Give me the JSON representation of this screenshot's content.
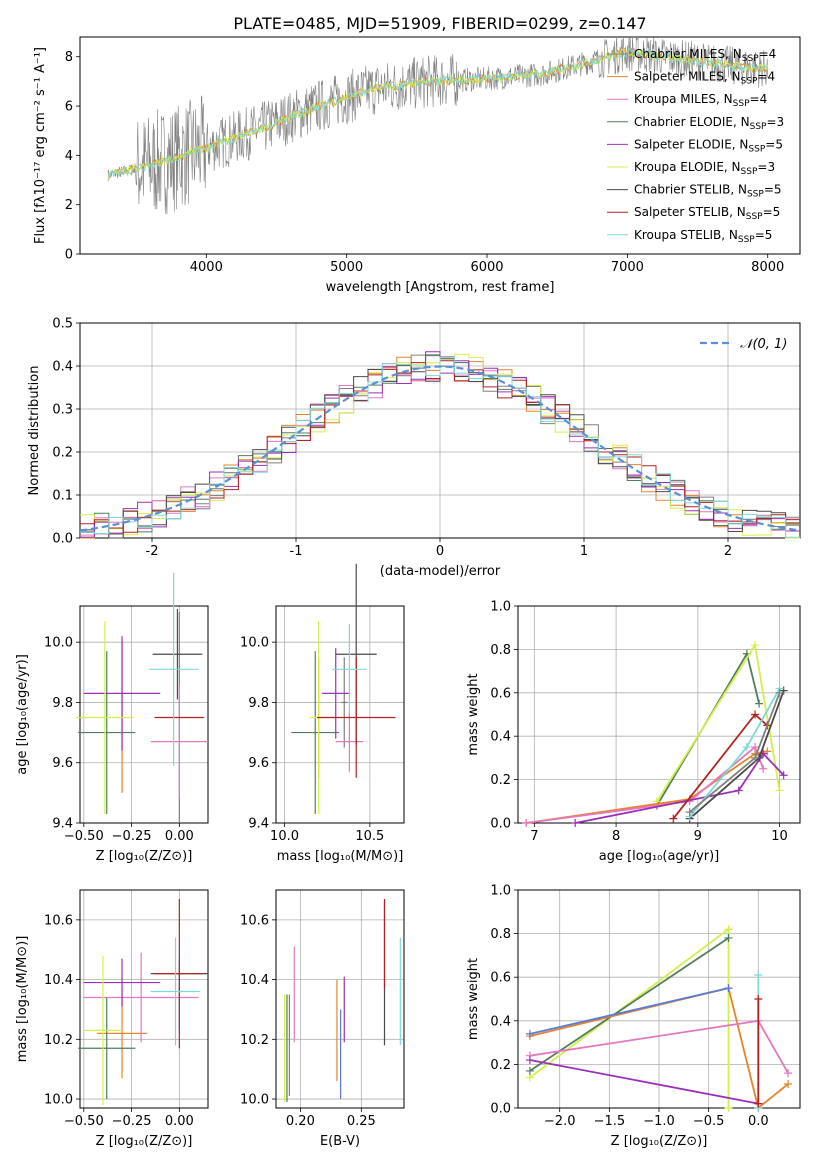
{
  "figure_title": "PLATE=0485, MJD=51909, FIBERID=0299, z=0.147",
  "colors": {
    "Chabrier MILES": "#808080",
    "Salpeter MILES": "#e6842a",
    "Kroupa MILES": "#e377c2",
    "Chabrier ELODIE": "#4f7f5f",
    "Salpeter ELODIE": "#9b30b8",
    "Kroupa ELODIE": "#d4ef4a",
    "Chabrier STELIB": "#4a4a4a",
    "Salpeter STELIB": "#b22222",
    "Kroupa STELIB": "#7fd8d8",
    "gaussian": "#5b8fd6",
    "blue_fit": "#5b7bd6"
  },
  "chart_data": [
    {
      "id": "spectrum",
      "type": "line",
      "title": "PLATE=0485, MJD=51909, FIBERID=0299, z=0.147",
      "xlabel": "wavelength [Angstrom, rest frame]",
      "ylabel": "Flux [fλ10⁻¹⁷ erg cm⁻² s⁻¹ A⁻¹]",
      "xlim": [
        3100,
        8230
      ],
      "ylim": [
        0,
        8.8
      ],
      "xticks": [
        4000,
        5000,
        6000,
        7000,
        8000
      ],
      "yticks": [
        0,
        2,
        4,
        6,
        8
      ],
      "grid": false,
      "legend": "top-right",
      "legend_entries": [
        {
          "label": "Chabrier MILES, N",
          "sub": "SSP",
          "tail": "=4",
          "color": "#808080"
        },
        {
          "label": "Salpeter MILES, N",
          "sub": "SSP",
          "tail": "=4",
          "color": "#e6842a"
        },
        {
          "label": "Kroupa MILES, N",
          "sub": "SSP",
          "tail": "=4",
          "color": "#e377c2"
        },
        {
          "label": "Chabrier ELODIE, N",
          "sub": "SSP",
          "tail": "=3",
          "color": "#4f7f5f"
        },
        {
          "label": "Salpeter ELODIE, N",
          "sub": "SSP",
          "tail": "=5",
          "color": "#9b30b8"
        },
        {
          "label": "Kroupa ELODIE, N",
          "sub": "SSP",
          "tail": "=3",
          "color": "#d4ef4a"
        },
        {
          "label": "Chabrier STELIB, N",
          "sub": "SSP",
          "tail": "=5",
          "color": "#4a4a4a"
        },
        {
          "label": "Salpeter STELIB, N",
          "sub": "SSP",
          "tail": "=5",
          "color": "#b22222"
        },
        {
          "label": "Kroupa STELIB, N",
          "sub": "SSP",
          "tail": "=5",
          "color": "#7fd8d8"
        }
      ],
      "continuum_points": [
        [
          3300,
          3.2
        ],
        [
          3600,
          3.6
        ],
        [
          4000,
          4.3
        ],
        [
          4400,
          5.1
        ],
        [
          4800,
          6.0
        ],
        [
          5200,
          6.7
        ],
        [
          5600,
          7.0
        ],
        [
          6000,
          7.1
        ],
        [
          6400,
          7.3
        ],
        [
          6800,
          7.9
        ],
        [
          7000,
          8.2
        ],
        [
          7400,
          7.9
        ],
        [
          7800,
          7.6
        ],
        [
          8000,
          7.5
        ]
      ]
    },
    {
      "id": "residuals",
      "type": "histogram",
      "xlabel": "(data-model)/error",
      "ylabel": "Normed distribution",
      "xlim": [
        -2.5,
        2.5
      ],
      "ylim": [
        0,
        0.5
      ],
      "xticks": [
        -2,
        -1,
        0,
        1,
        2
      ],
      "yticks": [
        0.0,
        0.1,
        0.2,
        0.3,
        0.4,
        0.5
      ],
      "grid": true,
      "legend": "top-right",
      "legend_label": "𝒩(0, 1)"
    },
    {
      "id": "age_vs_Z",
      "type": "scatter",
      "xlabel": "Z [log₁₀(Z/Z⊙)]",
      "ylabel": "age  [log₁₀(age/yr)]",
      "xlim": [
        -0.52,
        0.15
      ],
      "ylim": [
        9.4,
        10.12
      ],
      "xticks": [
        -0.5,
        -0.25,
        0.0
      ],
      "xticklabels": [
        "−0.50",
        "−0.25",
        "0.00"
      ],
      "yticks": [
        9.4,
        9.6,
        9.8,
        10.0
      ],
      "grid": true,
      "points": [
        {
          "model": "Chabrier MILES",
          "x": 0.0,
          "xerr": 0.0,
          "y": 9.75,
          "yerr": 0.35
        },
        {
          "model": "Salpeter MILES",
          "x": -0.3,
          "xerr": 0.0,
          "y": 9.75,
          "yerr": 0.25
        },
        {
          "model": "Kroupa MILES",
          "x": 0.0,
          "xerr": 0.15,
          "y": 9.67,
          "yerr": 0.19
        },
        {
          "model": "Chabrier ELODIE",
          "x": -0.38,
          "xerr": 0.15,
          "y": 9.7,
          "yerr": 0.27
        },
        {
          "model": "Salpeter ELODIE",
          "x": -0.3,
          "xerr": 0.2,
          "y": 9.83,
          "yerr": 0.19
        },
        {
          "model": "Kroupa ELODIE",
          "x": -0.39,
          "xerr": 0.15,
          "y": 9.75,
          "yerr": 0.32
        },
        {
          "model": "Chabrier STELIB",
          "x": -0.01,
          "xerr": 0.13,
          "y": 9.96,
          "yerr": 0.15
        },
        {
          "model": "Salpeter STELIB",
          "x": 0.0,
          "xerr": 0.13,
          "y": 9.75,
          "yerr": 0.0
        },
        {
          "model": "Kroupa STELIB",
          "x": -0.03,
          "xerr": 0.13,
          "y": 9.91,
          "yerr": 0.32
        }
      ]
    },
    {
      "id": "age_vs_mass",
      "type": "scatter",
      "xlabel": "mass [log₁₀(M/M⊙)]",
      "ylabel": "",
      "xlim": [
        9.95,
        10.7
      ],
      "ylim": [
        9.4,
        10.12
      ],
      "xticks": [
        10.0,
        10.5
      ],
      "xticklabels": [
        "10.0",
        "10.5"
      ],
      "yticks": [
        9.4,
        9.6,
        9.8,
        10.0
      ],
      "grid": true,
      "points": [
        {
          "model": "Chabrier MILES",
          "x": 10.35,
          "xerr": 0.02,
          "y": 9.8,
          "yerr": 0.15
        },
        {
          "model": "Salpeter MILES",
          "x": 10.2,
          "xerr": 0.0,
          "y": 9.75,
          "yerr": 0.2
        },
        {
          "model": "Kroupa MILES",
          "x": 10.38,
          "xerr": 0.08,
          "y": 9.67,
          "yerr": 0.1
        },
        {
          "model": "Chabrier ELODIE",
          "x": 10.18,
          "xerr": 0.14,
          "y": 9.7,
          "yerr": 0.27
        },
        {
          "model": "Salpeter ELODIE",
          "x": 10.3,
          "xerr": 0.08,
          "y": 9.83,
          "yerr": 0.15
        },
        {
          "model": "Kroupa ELODIE",
          "x": 10.2,
          "xerr": 0.05,
          "y": 9.75,
          "yerr": 0.32
        },
        {
          "model": "Chabrier STELIB",
          "x": 10.42,
          "xerr": 0.12,
          "y": 9.96,
          "yerr": 0.3
        },
        {
          "model": "Salpeter STELIB",
          "x": 10.42,
          "xerr": 0.23,
          "y": 9.75,
          "yerr": 0.2
        },
        {
          "model": "Kroupa STELIB",
          "x": 10.38,
          "xerr": 0.1,
          "y": 9.91,
          "yerr": 0.15
        }
      ]
    },
    {
      "id": "weight_vs_age",
      "type": "line",
      "xlabel": "age  [log₁₀(age/yr)]",
      "ylabel": "mass weight",
      "xlim": [
        6.8,
        10.25
      ],
      "ylim": [
        0,
        1.0
      ],
      "xticks": [
        7,
        8,
        9,
        10
      ],
      "yticks": [
        0.0,
        0.2,
        0.4,
        0.6,
        0.8,
        1.0
      ],
      "grid": true,
      "series": [
        {
          "model": "Chabrier ELODIE",
          "x": [
            8.5,
            9.6,
            9.75
          ],
          "y": [
            0.08,
            0.78,
            0.55
          ]
        },
        {
          "model": "Kroupa ELODIE",
          "x": [
            8.5,
            9.7,
            10.0
          ],
          "y": [
            0.1,
            0.82,
            0.15
          ]
        },
        {
          "model": "Salpeter MILES",
          "x": [
            6.9,
            8.9,
            9.7,
            9.85
          ],
          "y": [
            0.0,
            0.11,
            0.32,
            0.33
          ]
        },
        {
          "model": "Kroupa MILES",
          "x": [
            6.9,
            8.9,
            9.7,
            9.8
          ],
          "y": [
            0.0,
            0.1,
            0.35,
            0.25
          ]
        },
        {
          "model": "Salpeter ELODIE",
          "x": [
            7.5,
            9.5,
            9.8,
            10.05
          ],
          "y": [
            0.0,
            0.15,
            0.32,
            0.22
          ]
        },
        {
          "model": "Salpeter STELIB",
          "x": [
            8.7,
            9.7,
            9.85
          ],
          "y": [
            0.02,
            0.5,
            0.45
          ]
        },
        {
          "model": "Chabrier STELIB",
          "x": [
            8.9,
            9.75,
            10.05
          ],
          "y": [
            0.02,
            0.3,
            0.61
          ]
        },
        {
          "model": "Kroupa STELIB",
          "x": [
            8.9,
            9.6,
            10.0
          ],
          "y": [
            0.03,
            0.35,
            0.62
          ]
        },
        {
          "model": "Chabrier MILES",
          "x": [
            8.9,
            9.7,
            10.0
          ],
          "y": [
            0.05,
            0.3,
            0.6
          ]
        }
      ]
    },
    {
      "id": "mass_vs_Z",
      "type": "scatter",
      "xlabel": "Z [log₁₀(Z/Z⊙)]",
      "ylabel": "mass [log₁₀(M/M⊙)]",
      "xlim": [
        -0.52,
        0.15
      ],
      "ylim": [
        9.97,
        10.7
      ],
      "xticks": [
        -0.5,
        -0.25,
        0.0
      ],
      "xticklabels": [
        "−0.50",
        "−0.25",
        "0.00"
      ],
      "yticks": [
        10.0,
        10.2,
        10.4,
        10.6
      ],
      "grid": true,
      "points": [
        {
          "model": "Chabrier MILES",
          "x": 0.0,
          "xerr": 0.0,
          "y": 10.35,
          "yerr": 0.12
        },
        {
          "model": "Salpeter MILES",
          "x": -0.3,
          "xerr": 0.13,
          "y": 10.22,
          "yerr": 0.15
        },
        {
          "model": "Kroupa MILES",
          "x": -0.2,
          "xerr": 0.3,
          "y": 10.34,
          "yerr": 0.15
        },
        {
          "model": "Chabrier ELODIE",
          "x": -0.38,
          "xerr": 0.15,
          "y": 10.17,
          "yerr": 0.17
        },
        {
          "model": "Salpeter ELODIE",
          "x": -0.3,
          "xerr": 0.2,
          "y": 10.39,
          "yerr": 0.08
        },
        {
          "model": "Kroupa ELODIE",
          "x": -0.4,
          "xerr": 0.1,
          "y": 10.23,
          "yerr": 0.25
        },
        {
          "model": "Chabrier STELIB",
          "x": 0.0,
          "xerr": 0.15,
          "y": 10.42,
          "yerr": 0.0
        },
        {
          "model": "Salpeter STELIB",
          "x": 0.0,
          "xerr": 0.13,
          "y": 10.42,
          "yerr": 0.25
        },
        {
          "model": "Kroupa STELIB",
          "x": -0.02,
          "xerr": 0.13,
          "y": 10.36,
          "yerr": 0.18
        }
      ]
    },
    {
      "id": "mass_vs_EBV",
      "type": "scatter",
      "xlabel": "E(B-V)",
      "ylabel": "",
      "xlim": [
        0.18,
        0.285
      ],
      "ylim": [
        9.97,
        10.7
      ],
      "xticks": [
        0.2,
        0.25
      ],
      "xticklabels": [
        "0.20",
        "0.25"
      ],
      "yticks": [
        10.0,
        10.2,
        10.4,
        10.6
      ],
      "grid": true,
      "points": [
        {
          "model": "Chabrier MILES",
          "x": 0.191,
          "xerr": 0.0,
          "y": 10.18,
          "yerr": 0.17
        },
        {
          "model": "Salpeter MILES",
          "x": 0.23,
          "xerr": 0.0,
          "y": 10.23,
          "yerr": 0.17
        },
        {
          "model": "Kroupa MILES",
          "x": 0.195,
          "xerr": 0.0,
          "y": 10.35,
          "yerr": 0.16
        },
        {
          "model": "Chabrier ELODIE",
          "x": 0.189,
          "xerr": 0.0,
          "y": 10.17,
          "yerr": 0.18
        },
        {
          "model": "Salpeter ELODIE",
          "x": 0.236,
          "xerr": 0.0,
          "y": 10.3,
          "yerr": 0.11
        },
        {
          "model": "Kroupa ELODIE",
          "x": 0.187,
          "xerr": 0.0,
          "y": 10.17,
          "yerr": 0.18
        },
        {
          "model": "Chabrier STELIB",
          "x": 0.269,
          "xerr": 0.0,
          "y": 10.42,
          "yerr": 0.24
        },
        {
          "model": "Salpeter STELIB",
          "x": 0.269,
          "xerr": 0.0,
          "y": 10.52,
          "yerr": 0.15
        },
        {
          "model": "Kroupa STELIB",
          "x": 0.282,
          "xerr": 0.0,
          "y": 10.36,
          "yerr": 0.18
        },
        {
          "model": "blue",
          "x": 0.233,
          "xerr": 0.0,
          "y": 10.15,
          "yerr": 0.15
        }
      ]
    },
    {
      "id": "weight_vs_Z",
      "type": "line",
      "xlabel": "Z [log₁₀(Z/Z⊙)]",
      "ylabel": "mass weight",
      "xlim": [
        -2.42,
        0.42
      ],
      "ylim": [
        0,
        1.0
      ],
      "xticks": [
        -2.0,
        -1.5,
        -1.0,
        -0.5,
        0.0
      ],
      "xticklabels": [
        "−2.0",
        "−1.5",
        "−1.0",
        "−0.5",
        "0.0"
      ],
      "yticks": [
        0.0,
        0.2,
        0.4,
        0.6,
        0.8,
        1.0
      ],
      "grid": true,
      "series": [
        {
          "model": "Kroupa ELODIE",
          "x": [
            -2.3,
            -0.3,
            -0.3
          ],
          "y": [
            0.14,
            0.82,
            0.0
          ]
        },
        {
          "model": "Chabrier ELODIE",
          "x": [
            -2.3,
            -0.3
          ],
          "y": [
            0.17,
            0.78
          ]
        },
        {
          "model": "Salpeter MILES",
          "x": [
            -2.3,
            -0.3,
            -0.3,
            0.0,
            0.3
          ],
          "y": [
            0.33,
            0.55,
            0.55,
            0.0,
            0.11
          ]
        },
        {
          "model": "blue_fit",
          "x": [
            -2.3,
            -0.3
          ],
          "y": [
            0.34,
            0.55
          ]
        },
        {
          "model": "Kroupa MILES",
          "x": [
            -2.3,
            0.0,
            0.3
          ],
          "y": [
            0.24,
            0.4,
            0.16
          ]
        },
        {
          "model": "Salpeter ELODIE",
          "x": [
            -2.3,
            0.0
          ],
          "y": [
            0.22,
            0.02
          ]
        },
        {
          "model": "Kroupa STELIB",
          "x": [
            0.0,
            0.0
          ],
          "y": [
            0.0,
            0.61
          ]
        },
        {
          "model": "Salpeter STELIB",
          "x": [
            0.0,
            0.0
          ],
          "y": [
            0.02,
            0.5
          ]
        }
      ]
    }
  ]
}
